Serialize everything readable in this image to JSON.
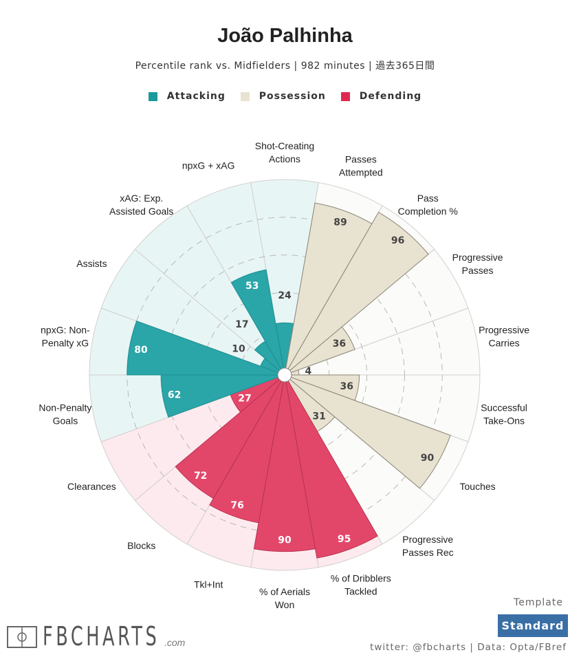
{
  "header": {
    "title": "João Palhinha",
    "subtitle": "Percentile rank vs. Midfielders | 982 minutes | 過去365日間"
  },
  "legend": [
    {
      "label": "Attacking",
      "color": "#1a9a9c"
    },
    {
      "label": "Possession",
      "color": "#e8e2d0"
    },
    {
      "label": "Defending",
      "color": "#e0284f"
    }
  ],
  "footer": {
    "logo": "FBCHARTS",
    "logo_suffix": ".com",
    "template_label": "Template",
    "template_button": "Standard",
    "credit": "twitter: @fbcharts | Data: Opta/FBref"
  },
  "chart_data": {
    "type": "pie",
    "subtype": "polar-area (pizza) chart",
    "title": "João Palhinha",
    "subtitle": "Percentile rank vs. Midfielders | 982 minutes | 過去365日間",
    "range": [
      0,
      100
    ],
    "legend_position": "top",
    "grid": "dashed rings at 20,40,60,80",
    "categories": [
      {
        "label": "Shot-Creating Actions",
        "group": "Attacking",
        "value": 24
      },
      {
        "label": "Passes Attempted",
        "group": "Possession",
        "value": 89
      },
      {
        "label": "Pass Completion %",
        "group": "Possession",
        "value": 96
      },
      {
        "label": "Progressive Passes",
        "group": "Possession",
        "value": 36
      },
      {
        "label": "Progressive Carries",
        "group": "Possession",
        "value": 4
      },
      {
        "label": "Successful Take-Ons",
        "group": "Possession",
        "value": 36
      },
      {
        "label": "Touches",
        "group": "Possession",
        "value": 90
      },
      {
        "label": "Progressive Passes Rec",
        "group": "Possession",
        "value": 31
      },
      {
        "label": "% of Dribblers Tackled",
        "group": "Defending",
        "value": 95
      },
      {
        "label": "% of Aerials Won",
        "group": "Defending",
        "value": 90
      },
      {
        "label": "Tkl+Int",
        "group": "Defending",
        "value": 76
      },
      {
        "label": "Blocks",
        "group": "Defending",
        "value": 72
      },
      {
        "label": "Clearances",
        "group": "Defending",
        "value": 27
      },
      {
        "label": "Non-Penalty Goals",
        "group": "Attacking",
        "value": 62
      },
      {
        "label": "npxG: Non-Penalty xG",
        "group": "Attacking",
        "value": 80
      },
      {
        "label": "Assists",
        "group": "Attacking",
        "value": 10
      },
      {
        "label": "xAG: Exp. Assisted Goals",
        "group": "Attacking",
        "value": 17
      },
      {
        "label": "npxG + xAG",
        "group": "Attacking",
        "value": 53
      }
    ],
    "label_lines": {
      "Shot-Creating Actions": [
        "Shot-Creating",
        "Actions"
      ],
      "Passes Attempted": [
        "Passes",
        "Attempted"
      ],
      "Pass Completion %": [
        "Pass",
        "Completion %"
      ],
      "Progressive Passes": [
        "Progressive",
        "Passes"
      ],
      "Progressive Carries": [
        "Progressive",
        "Carries"
      ],
      "Successful Take-Ons": [
        "Successful",
        "Take-Ons"
      ],
      "Touches": [
        "Touches"
      ],
      "Progressive Passes Rec": [
        "Progressive",
        "Passes Rec"
      ],
      "% of Dribblers Tackled": [
        "% of Dribblers",
        "Tackled"
      ],
      "% of Aerials Won": [
        "% of Aerials",
        "Won"
      ],
      "Tkl+Int": [
        "Tkl+Int"
      ],
      "Blocks": [
        "Blocks"
      ],
      "Clearances": [
        "Clearances"
      ],
      "Non-Penalty Goals": [
        "Non-Penalty",
        "Goals"
      ],
      "npxG: Non-Penalty xG": [
        "npxG: Non-",
        "Penalty xG"
      ],
      "Assists": [
        "Assists"
      ],
      "xAG: Exp. Assisted Goals": [
        "xAG: Exp.",
        "Assisted Goals"
      ],
      "npxG + xAG": [
        "npxG + xAG"
      ]
    }
  }
}
